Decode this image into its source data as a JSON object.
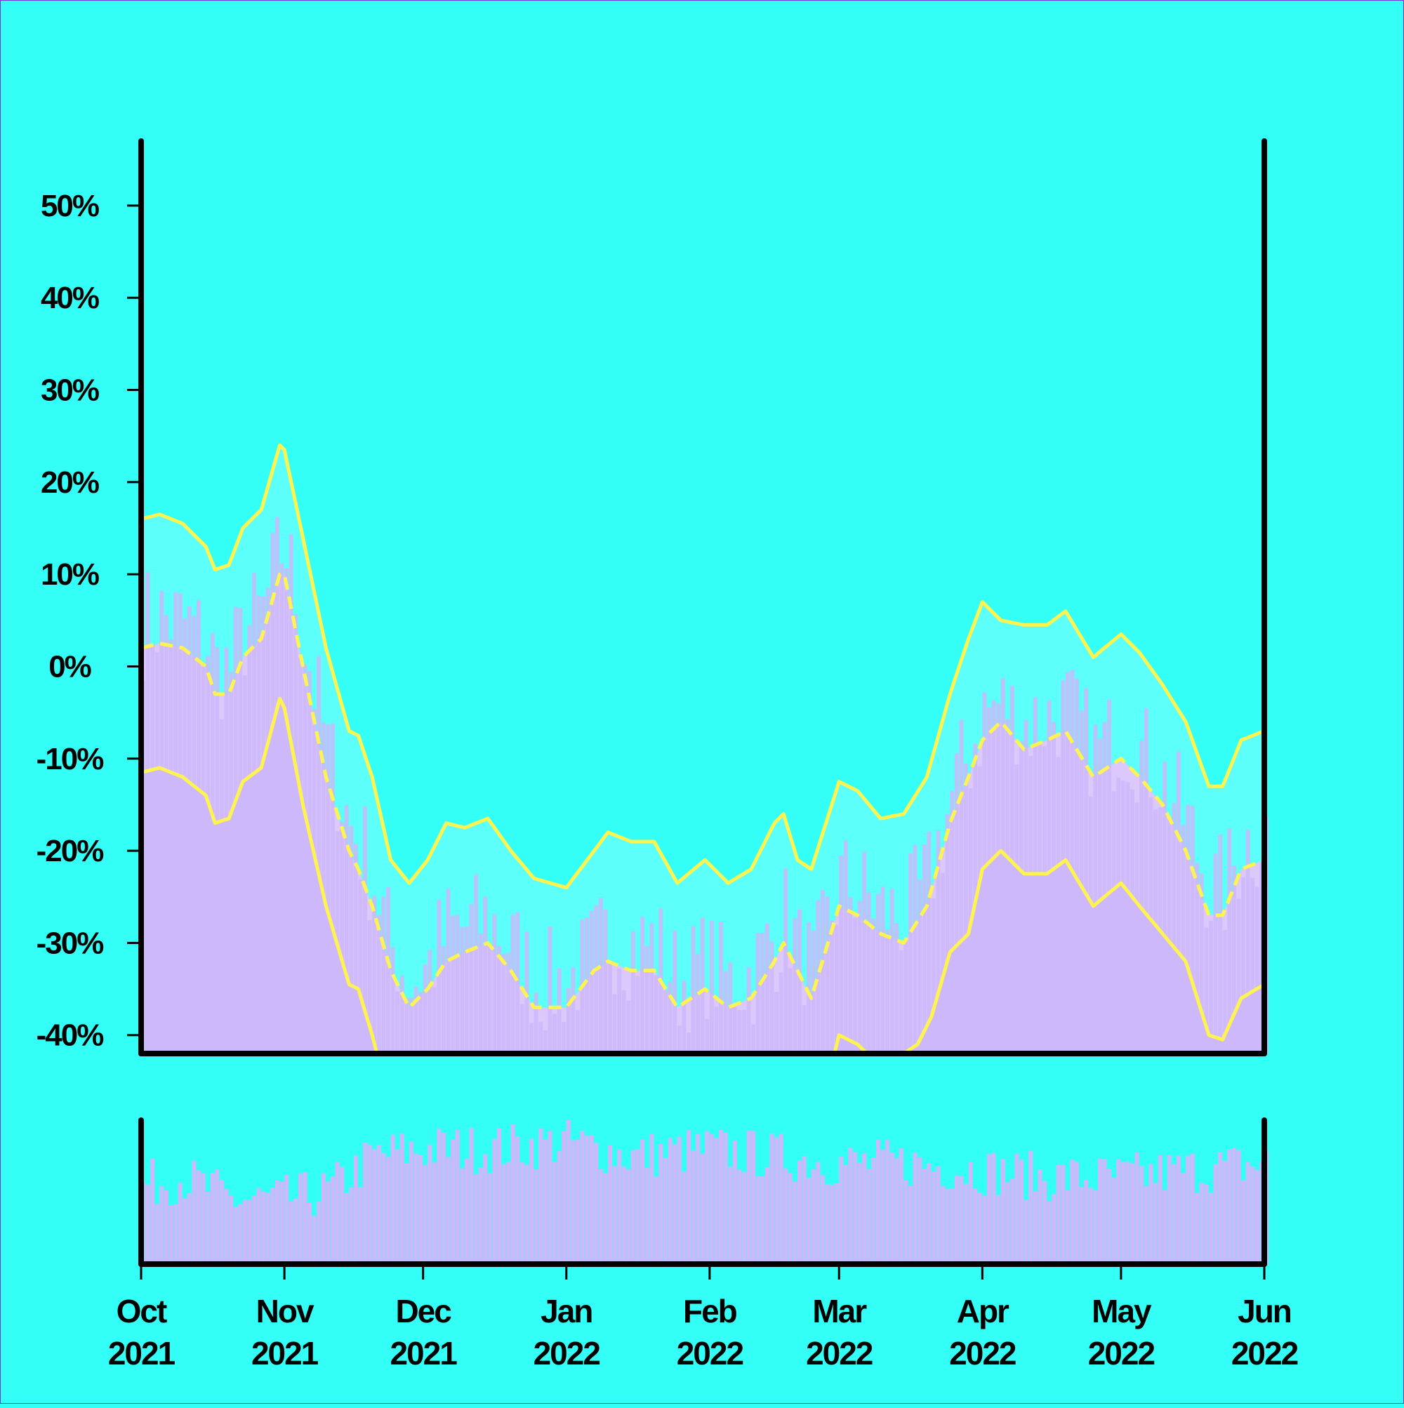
{
  "chart_data": {
    "type": "area",
    "title": "",
    "xlabel": "",
    "ylabel": "",
    "x_range": [
      "2021-10-01",
      "2022-06-01"
    ],
    "ylim": [
      -0.42,
      0.57
    ],
    "y_ticks": [
      {
        "value": -0.4,
        "label": "-40%"
      },
      {
        "value": -0.3,
        "label": "-30%"
      },
      {
        "value": -0.2,
        "label": "-20%"
      },
      {
        "value": -0.1,
        "label": "-10%"
      },
      {
        "value": 0.0,
        "label": "0%"
      },
      {
        "value": 0.1,
        "label": "10%"
      },
      {
        "value": 0.2,
        "label": "20%"
      },
      {
        "value": 0.3,
        "label": "30%"
      },
      {
        "value": 0.4,
        "label": "40%"
      },
      {
        "value": 0.5,
        "label": "50%"
      }
    ],
    "x_ticks": [
      {
        "date": "2021-10-01",
        "month": "Oct",
        "year": "2021"
      },
      {
        "date": "2021-11-01",
        "month": "Nov",
        "year": "2021"
      },
      {
        "date": "2021-12-01",
        "month": "Dec",
        "year": "2021"
      },
      {
        "date": "2022-01-01",
        "month": "Jan",
        "year": "2022"
      },
      {
        "date": "2022-02-01",
        "month": "Feb",
        "year": "2022"
      },
      {
        "date": "2022-03-01",
        "month": "Mar",
        "year": "2022"
      },
      {
        "date": "2022-04-01",
        "month": "Apr",
        "year": "2022"
      },
      {
        "date": "2022-05-01",
        "month": "May",
        "year": "2022"
      },
      {
        "date": "2022-06-01",
        "month": "Jun",
        "year": "2022"
      }
    ],
    "series": [
      {
        "role": "median",
        "style": "dashed",
        "points": [
          [
            "2021-10-01",
            0.02
          ],
          [
            "2021-10-05",
            0.025
          ],
          [
            "2021-10-10",
            0.02
          ],
          [
            "2021-10-15",
            0.0
          ],
          [
            "2021-10-17",
            -0.03
          ],
          [
            "2021-10-20",
            -0.03
          ],
          [
            "2021-10-23",
            0.01
          ],
          [
            "2021-10-27",
            0.03
          ],
          [
            "2021-10-31",
            0.1
          ],
          [
            "2021-11-01",
            0.1
          ],
          [
            "2021-11-05",
            0.0
          ],
          [
            "2021-11-10",
            -0.12
          ],
          [
            "2021-11-15",
            -0.2
          ],
          [
            "2021-11-17",
            -0.22
          ],
          [
            "2021-11-20",
            -0.26
          ],
          [
            "2021-11-24",
            -0.33
          ],
          [
            "2021-11-28",
            -0.37
          ],
          [
            "2021-12-02",
            -0.35
          ],
          [
            "2021-12-06",
            -0.32
          ],
          [
            "2021-12-10",
            -0.31
          ],
          [
            "2021-12-15",
            -0.3
          ],
          [
            "2021-12-20",
            -0.33
          ],
          [
            "2021-12-25",
            -0.37
          ],
          [
            "2022-01-01",
            -0.37
          ],
          [
            "2022-01-07",
            -0.33
          ],
          [
            "2022-01-10",
            -0.32
          ],
          [
            "2022-01-15",
            -0.33
          ],
          [
            "2022-01-20",
            -0.33
          ],
          [
            "2022-01-25",
            -0.37
          ],
          [
            "2022-01-31",
            -0.35
          ],
          [
            "2022-02-05",
            -0.37
          ],
          [
            "2022-02-10",
            -0.36
          ],
          [
            "2022-02-15",
            -0.32
          ],
          [
            "2022-02-17",
            -0.3
          ],
          [
            "2022-02-20",
            -0.33
          ],
          [
            "2022-02-23",
            -0.36
          ],
          [
            "2022-03-01",
            -0.26
          ],
          [
            "2022-03-05",
            -0.27
          ],
          [
            "2022-03-10",
            -0.29
          ],
          [
            "2022-03-15",
            -0.3
          ],
          [
            "2022-03-20",
            -0.26
          ],
          [
            "2022-03-25",
            -0.17
          ],
          [
            "2022-03-29",
            -0.12
          ],
          [
            "2022-04-01",
            -0.08
          ],
          [
            "2022-04-05",
            -0.06
          ],
          [
            "2022-04-10",
            -0.09
          ],
          [
            "2022-04-15",
            -0.08
          ],
          [
            "2022-04-19",
            -0.07
          ],
          [
            "2022-04-25",
            -0.12
          ],
          [
            "2022-05-01",
            -0.1
          ],
          [
            "2022-05-05",
            -0.12
          ],
          [
            "2022-05-10",
            -0.15
          ],
          [
            "2022-05-15",
            -0.2
          ],
          [
            "2022-05-20",
            -0.27
          ],
          [
            "2022-05-23",
            -0.27
          ],
          [
            "2022-05-27",
            -0.22
          ],
          [
            "2022-06-01",
            -0.21
          ]
        ]
      },
      {
        "role": "upper",
        "style": "solid",
        "points": [
          [
            "2021-10-01",
            0.16
          ],
          [
            "2021-10-05",
            0.165
          ],
          [
            "2021-10-10",
            0.155
          ],
          [
            "2021-10-15",
            0.13
          ],
          [
            "2021-10-17",
            0.105
          ],
          [
            "2021-10-20",
            0.11
          ],
          [
            "2021-10-23",
            0.15
          ],
          [
            "2021-10-27",
            0.17
          ],
          [
            "2021-10-31",
            0.24
          ],
          [
            "2021-11-01",
            0.235
          ],
          [
            "2021-11-05",
            0.14
          ],
          [
            "2021-11-10",
            0.02
          ],
          [
            "2021-11-15",
            -0.07
          ],
          [
            "2021-11-17",
            -0.075
          ],
          [
            "2021-11-20",
            -0.12
          ],
          [
            "2021-11-24",
            -0.21
          ],
          [
            "2021-11-28",
            -0.235
          ],
          [
            "2021-12-02",
            -0.21
          ],
          [
            "2021-12-06",
            -0.17
          ],
          [
            "2021-12-10",
            -0.175
          ],
          [
            "2021-12-15",
            -0.165
          ],
          [
            "2021-12-20",
            -0.2
          ],
          [
            "2021-12-25",
            -0.23
          ],
          [
            "2022-01-01",
            -0.24
          ],
          [
            "2022-01-07",
            -0.2
          ],
          [
            "2022-01-10",
            -0.18
          ],
          [
            "2022-01-15",
            -0.19
          ],
          [
            "2022-01-20",
            -0.19
          ],
          [
            "2022-01-25",
            -0.235
          ],
          [
            "2022-01-31",
            -0.21
          ],
          [
            "2022-02-05",
            -0.235
          ],
          [
            "2022-02-10",
            -0.22
          ],
          [
            "2022-02-15",
            -0.17
          ],
          [
            "2022-02-17",
            -0.16
          ],
          [
            "2022-02-20",
            -0.21
          ],
          [
            "2022-02-23",
            -0.22
          ],
          [
            "2022-03-01",
            -0.125
          ],
          [
            "2022-03-05",
            -0.135
          ],
          [
            "2022-03-10",
            -0.165
          ],
          [
            "2022-03-15",
            -0.16
          ],
          [
            "2022-03-20",
            -0.12
          ],
          [
            "2022-03-25",
            -0.03
          ],
          [
            "2022-03-29",
            0.03
          ],
          [
            "2022-04-01",
            0.07
          ],
          [
            "2022-04-05",
            0.05
          ],
          [
            "2022-04-10",
            0.045
          ],
          [
            "2022-04-15",
            0.045
          ],
          [
            "2022-04-19",
            0.06
          ],
          [
            "2022-04-25",
            0.01
          ],
          [
            "2022-05-01",
            0.035
          ],
          [
            "2022-05-05",
            0.015
          ],
          [
            "2022-05-10",
            -0.02
          ],
          [
            "2022-05-15",
            -0.06
          ],
          [
            "2022-05-20",
            -0.13
          ],
          [
            "2022-05-23",
            -0.13
          ],
          [
            "2022-05-27",
            -0.08
          ],
          [
            "2022-06-01",
            -0.07
          ]
        ]
      },
      {
        "role": "lower",
        "style": "solid",
        "points": [
          [
            "2021-10-01",
            -0.115
          ],
          [
            "2021-10-05",
            -0.11
          ],
          [
            "2021-10-10",
            -0.12
          ],
          [
            "2021-10-15",
            -0.14
          ],
          [
            "2021-10-17",
            -0.17
          ],
          [
            "2021-10-20",
            -0.165
          ],
          [
            "2021-10-23",
            -0.125
          ],
          [
            "2021-10-27",
            -0.11
          ],
          [
            "2021-10-31",
            -0.035
          ],
          [
            "2021-11-01",
            -0.045
          ],
          [
            "2021-11-05",
            -0.15
          ],
          [
            "2021-11-10",
            -0.26
          ],
          [
            "2021-11-15",
            -0.345
          ],
          [
            "2021-11-17",
            -0.35
          ],
          [
            "2021-11-20",
            -0.4
          ],
          [
            "2021-11-21",
            -0.42
          ],
          [
            "2022-02-28",
            -0.42
          ],
          [
            "2022-03-01",
            -0.4
          ],
          [
            "2022-03-05",
            -0.41
          ],
          [
            "2022-03-07",
            -0.42
          ],
          [
            "2022-03-15",
            -0.42
          ],
          [
            "2022-03-18",
            -0.41
          ],
          [
            "2022-03-21",
            -0.38
          ],
          [
            "2022-03-25",
            -0.31
          ],
          [
            "2022-03-29",
            -0.29
          ],
          [
            "2022-04-01",
            -0.22
          ],
          [
            "2022-04-05",
            -0.2
          ],
          [
            "2022-04-10",
            -0.225
          ],
          [
            "2022-04-15",
            -0.225
          ],
          [
            "2022-04-19",
            -0.21
          ],
          [
            "2022-04-25",
            -0.26
          ],
          [
            "2022-05-01",
            -0.235
          ],
          [
            "2022-05-05",
            -0.26
          ],
          [
            "2022-05-10",
            -0.29
          ],
          [
            "2022-05-15",
            -0.32
          ],
          [
            "2022-05-20",
            -0.4
          ],
          [
            "2022-05-23",
            -0.405
          ],
          [
            "2022-05-27",
            -0.36
          ],
          [
            "2022-06-01",
            -0.345
          ]
        ]
      }
    ],
    "colors": {
      "background": "#33FFF7",
      "band_outer": "#5CFFF9",
      "band_inner": "#DCC8FA",
      "band_lowest": "#CCB8FA",
      "bars": "#CDB8FB",
      "lines": "#FFF44F",
      "axis": "#000000"
    },
    "lower_panel": {
      "type": "bar",
      "description_note": "",
      "relative_scale": [
        0,
        1
      ],
      "seed_profile": [
        [
          "2021-10-01",
          0.55
        ],
        [
          "2021-10-10",
          0.6
        ],
        [
          "2021-10-20",
          0.45
        ],
        [
          "2021-11-01",
          0.45
        ],
        [
          "2021-11-10",
          0.5
        ],
        [
          "2021-11-20",
          0.75
        ],
        [
          "2021-12-01",
          0.8
        ],
        [
          "2021-12-15",
          0.8
        ],
        [
          "2022-01-01",
          0.85
        ],
        [
          "2022-01-15",
          0.75
        ],
        [
          "2022-02-01",
          0.8
        ],
        [
          "2022-02-15",
          0.75
        ],
        [
          "2022-03-01",
          0.7
        ],
        [
          "2022-03-15",
          0.7
        ],
        [
          "2022-04-01",
          0.65
        ],
        [
          "2022-04-15",
          0.6
        ],
        [
          "2022-05-01",
          0.6
        ],
        [
          "2022-05-15",
          0.65
        ],
        [
          "2022-06-01",
          0.7
        ]
      ]
    }
  }
}
